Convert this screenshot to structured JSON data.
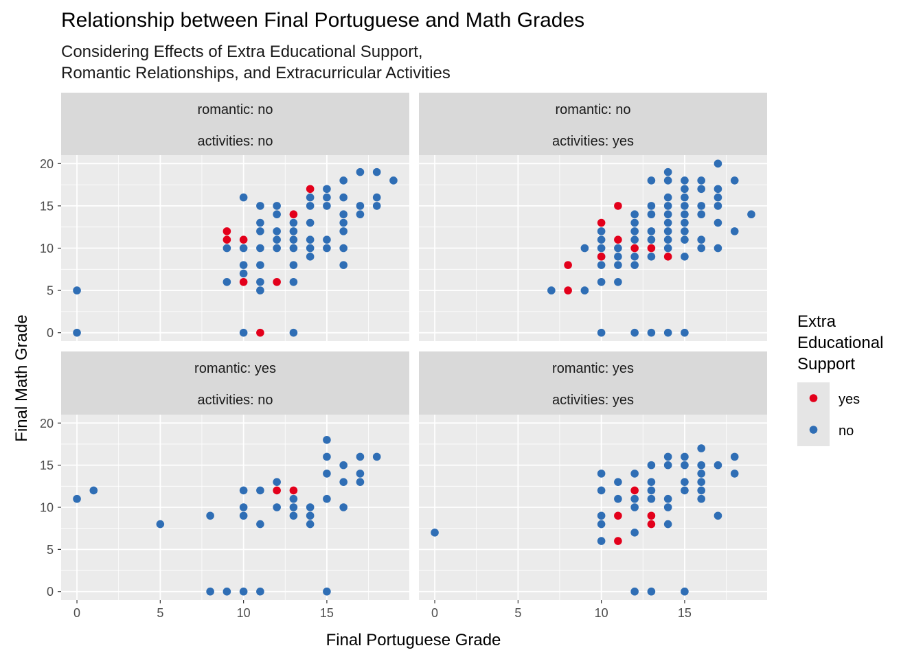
{
  "chart_data": {
    "type": "scatter",
    "title": "Relationship between Final Portuguese and Math Grades",
    "subtitle_lines": [
      "Considering Effects of Extra Educational Support,",
      "Romantic Relationships, and Extracurricular Activities"
    ],
    "xlabel": "Final Portuguese Grade",
    "ylabel": "Final Math Grade",
    "xlim": [
      -0.95,
      19.95
    ],
    "ylim": [
      -1,
      21
    ],
    "x_ticks": [
      0,
      5,
      10,
      15
    ],
    "y_ticks": [
      0,
      5,
      10,
      15,
      20
    ],
    "grid": true,
    "legend": {
      "title_lines": [
        "Extra",
        "Educational",
        "Support"
      ],
      "position": "right",
      "entries": [
        {
          "label": "yes",
          "color": "#E3001B"
        },
        {
          "label": "no",
          "color": "#2F6EB5"
        }
      ]
    },
    "panels": [
      {
        "strip_top": "romantic: no",
        "strip_bottom": "activities: no",
        "points_no": [
          [
            0,
            5
          ],
          [
            0,
            0
          ],
          [
            9,
            10
          ],
          [
            9,
            6
          ],
          [
            10,
            16
          ],
          [
            10,
            10
          ],
          [
            10,
            8
          ],
          [
            10,
            7
          ],
          [
            10,
            0
          ],
          [
            11,
            15
          ],
          [
            11,
            13
          ],
          [
            11,
            12
          ],
          [
            11,
            10
          ],
          [
            11,
            8
          ],
          [
            11,
            6
          ],
          [
            11,
            5
          ],
          [
            12,
            15
          ],
          [
            12,
            14
          ],
          [
            12,
            12
          ],
          [
            12,
            11
          ],
          [
            12,
            10
          ],
          [
            13,
            13
          ],
          [
            13,
            12
          ],
          [
            13,
            11
          ],
          [
            13,
            10
          ],
          [
            13,
            8
          ],
          [
            13,
            6
          ],
          [
            13,
            0
          ],
          [
            14,
            16
          ],
          [
            14,
            15
          ],
          [
            14,
            13
          ],
          [
            14,
            11
          ],
          [
            14,
            10
          ],
          [
            14,
            9
          ],
          [
            15,
            17
          ],
          [
            15,
            16
          ],
          [
            15,
            15
          ],
          [
            15,
            11
          ],
          [
            15,
            10
          ],
          [
            16,
            18
          ],
          [
            16,
            16
          ],
          [
            16,
            14
          ],
          [
            16,
            13
          ],
          [
            16,
            12
          ],
          [
            16,
            10
          ],
          [
            16,
            8
          ],
          [
            17,
            19
          ],
          [
            17,
            15
          ],
          [
            17,
            14
          ],
          [
            18,
            19
          ],
          [
            18,
            16
          ],
          [
            18,
            15
          ],
          [
            19,
            18
          ]
        ],
        "points_yes": [
          [
            9,
            12
          ],
          [
            9,
            11
          ],
          [
            10,
            11
          ],
          [
            10,
            6
          ],
          [
            11,
            0
          ],
          [
            12,
            6
          ],
          [
            13,
            14
          ],
          [
            14,
            17
          ]
        ]
      },
      {
        "strip_top": "romantic: no",
        "strip_bottom": "activities: yes",
        "points_no": [
          [
            7,
            5
          ],
          [
            9,
            10
          ],
          [
            9,
            5
          ],
          [
            10,
            12
          ],
          [
            10,
            11
          ],
          [
            10,
            10
          ],
          [
            10,
            9
          ],
          [
            10,
            8
          ],
          [
            10,
            6
          ],
          [
            10,
            0
          ],
          [
            11,
            10
          ],
          [
            11,
            9
          ],
          [
            11,
            8
          ],
          [
            11,
            6
          ],
          [
            12,
            14
          ],
          [
            12,
            13
          ],
          [
            12,
            12
          ],
          [
            12,
            11
          ],
          [
            12,
            9
          ],
          [
            12,
            8
          ],
          [
            12,
            0
          ],
          [
            13,
            18
          ],
          [
            13,
            15
          ],
          [
            13,
            14
          ],
          [
            13,
            12
          ],
          [
            13,
            11
          ],
          [
            13,
            9
          ],
          [
            13,
            0
          ],
          [
            14,
            19
          ],
          [
            14,
            18
          ],
          [
            14,
            16
          ],
          [
            14,
            15
          ],
          [
            14,
            14
          ],
          [
            14,
            13
          ],
          [
            14,
            12
          ],
          [
            14,
            11
          ],
          [
            14,
            10
          ],
          [
            14,
            0
          ],
          [
            15,
            18
          ],
          [
            15,
            17
          ],
          [
            15,
            16
          ],
          [
            15,
            15
          ],
          [
            15,
            14
          ],
          [
            15,
            13
          ],
          [
            15,
            12
          ],
          [
            15,
            11
          ],
          [
            15,
            9
          ],
          [
            15,
            0
          ],
          [
            16,
            18
          ],
          [
            16,
            17
          ],
          [
            16,
            15
          ],
          [
            16,
            14
          ],
          [
            16,
            11
          ],
          [
            16,
            10
          ],
          [
            17,
            20
          ],
          [
            17,
            17
          ],
          [
            17,
            16
          ],
          [
            17,
            15
          ],
          [
            17,
            13
          ],
          [
            17,
            10
          ],
          [
            18,
            18
          ],
          [
            18,
            12
          ],
          [
            19,
            14
          ]
        ],
        "points_yes": [
          [
            8,
            8
          ],
          [
            8,
            5
          ],
          [
            10,
            13
          ],
          [
            10,
            9
          ],
          [
            11,
            15
          ],
          [
            11,
            11
          ],
          [
            12,
            10
          ],
          [
            13,
            10
          ],
          [
            14,
            9
          ]
        ]
      },
      {
        "strip_top": "romantic: yes",
        "strip_bottom": "activities: no",
        "points_no": [
          [
            0,
            11
          ],
          [
            1,
            12
          ],
          [
            5,
            8
          ],
          [
            8,
            9
          ],
          [
            8,
            0
          ],
          [
            9,
            0
          ],
          [
            10,
            12
          ],
          [
            10,
            10
          ],
          [
            10,
            9
          ],
          [
            10,
            0
          ],
          [
            11,
            12
          ],
          [
            11,
            8
          ],
          [
            11,
            0
          ],
          [
            12,
            13
          ],
          [
            12,
            10
          ],
          [
            13,
            11
          ],
          [
            13,
            10
          ],
          [
            13,
            9
          ],
          [
            14,
            10
          ],
          [
            14,
            9
          ],
          [
            14,
            8
          ],
          [
            15,
            18
          ],
          [
            15,
            16
          ],
          [
            15,
            14
          ],
          [
            15,
            11
          ],
          [
            15,
            0
          ],
          [
            16,
            15
          ],
          [
            16,
            13
          ],
          [
            16,
            10
          ],
          [
            17,
            16
          ],
          [
            17,
            14
          ],
          [
            17,
            13
          ],
          [
            18,
            16
          ]
        ],
        "points_yes": [
          [
            12,
            12
          ],
          [
            13,
            12
          ]
        ]
      },
      {
        "strip_top": "romantic: yes",
        "strip_bottom": "activities: yes",
        "points_no": [
          [
            0,
            7
          ],
          [
            10,
            14
          ],
          [
            10,
            12
          ],
          [
            10,
            9
          ],
          [
            10,
            8
          ],
          [
            10,
            6
          ],
          [
            11,
            13
          ],
          [
            11,
            11
          ],
          [
            12,
            14
          ],
          [
            12,
            11
          ],
          [
            12,
            10
          ],
          [
            12,
            7
          ],
          [
            12,
            0
          ],
          [
            13,
            15
          ],
          [
            13,
            13
          ],
          [
            13,
            12
          ],
          [
            13,
            11
          ],
          [
            13,
            0
          ],
          [
            14,
            16
          ],
          [
            14,
            15
          ],
          [
            14,
            11
          ],
          [
            14,
            10
          ],
          [
            14,
            8
          ],
          [
            15,
            16
          ],
          [
            15,
            15
          ],
          [
            15,
            13
          ],
          [
            15,
            12
          ],
          [
            15,
            0
          ],
          [
            16,
            17
          ],
          [
            16,
            15
          ],
          [
            16,
            14
          ],
          [
            16,
            13
          ],
          [
            16,
            12
          ],
          [
            16,
            11
          ],
          [
            17,
            15
          ],
          [
            17,
            9
          ],
          [
            18,
            16
          ],
          [
            18,
            14
          ]
        ],
        "points_yes": [
          [
            11,
            9
          ],
          [
            11,
            6
          ],
          [
            12,
            12
          ],
          [
            13,
            9
          ],
          [
            13,
            8
          ]
        ]
      }
    ]
  }
}
